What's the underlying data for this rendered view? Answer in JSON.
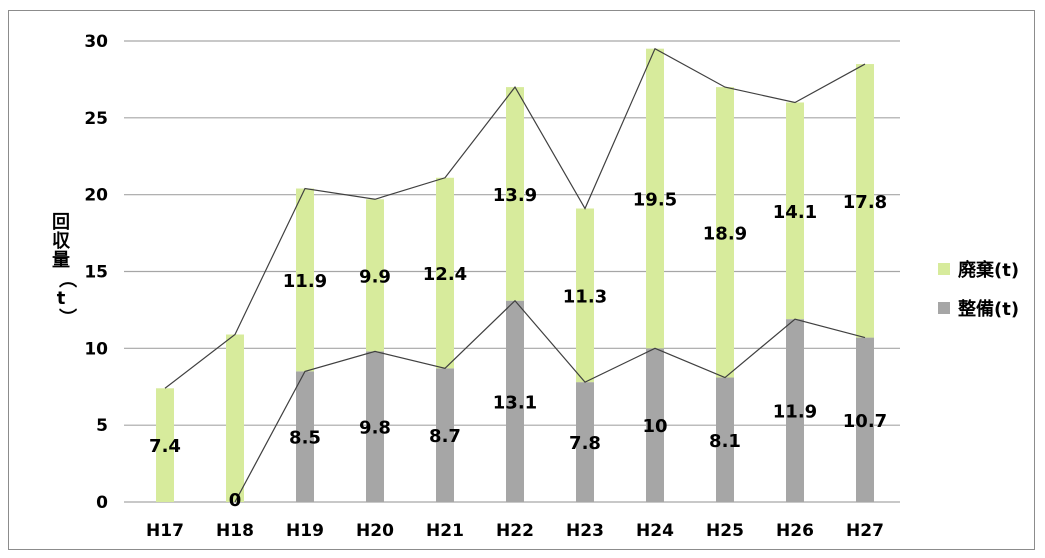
{
  "chart_data": {
    "type": "bar",
    "stacked": true,
    "categories": [
      "H17",
      "H18",
      "H19",
      "H20",
      "H21",
      "H22",
      "H23",
      "H24",
      "H25",
      "H26",
      "H27"
    ],
    "series": [
      {
        "name": "整備(t)",
        "color": "#a6a6a6",
        "values": [
          null,
          0,
          8.5,
          9.8,
          8.7,
          13.1,
          7.8,
          10,
          8.1,
          11.9,
          10.7
        ],
        "labels": [
          "",
          "0",
          "8.5",
          "9.8",
          "8.7",
          "13.1",
          "7.8",
          "10",
          "8.1",
          "11.9",
          "10.7"
        ]
      },
      {
        "name": "廃棄(t)",
        "color": "#d7eb9c",
        "values": [
          7.4,
          10.9,
          11.9,
          9.9,
          12.4,
          13.9,
          11.3,
          19.5,
          18.9,
          14.1,
          17.8
        ],
        "labels": [
          "7.4",
          "",
          "11.9",
          "9.9",
          "12.4",
          "13.9",
          "11.3",
          "19.5",
          "18.9",
          "14.1",
          "17.8"
        ]
      }
    ],
    "ylabel": "回収量（t）",
    "ylim": [
      0,
      30
    ],
    "yticks": [
      0,
      5,
      10,
      15,
      20,
      25,
      30
    ],
    "grid": true,
    "legend": "right",
    "connector_lines": true
  }
}
